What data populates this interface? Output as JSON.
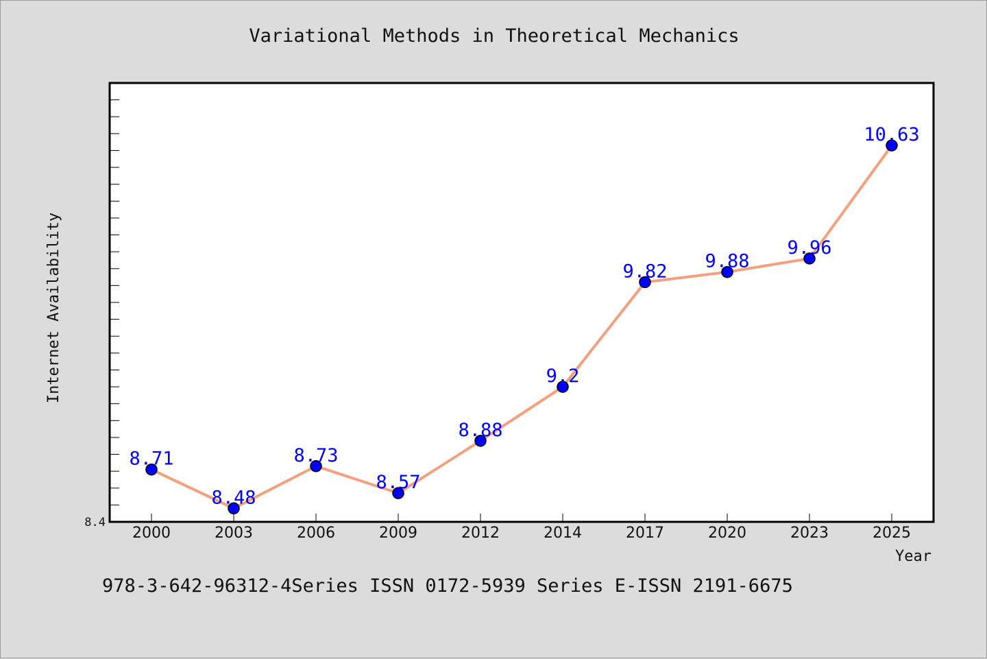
{
  "chart_data": {
    "type": "line",
    "title": "Variational Methods in Theoretical Mechanics",
    "xlabel": "Year",
    "ylabel": "Internet Availability",
    "categories": [
      "2000",
      "2003",
      "2006",
      "2009",
      "2012",
      "2014",
      "2017",
      "2020",
      "2023",
      "2025"
    ],
    "series": [
      {
        "values": [
          8.71,
          8.48,
          8.73,
          8.57,
          8.88,
          9.2,
          9.82,
          9.88,
          9.96,
          10.63
        ],
        "data_labels": [
          "8.71",
          "8.48",
          "8.73",
          "8.57",
          "8.88",
          "9.2",
          "9.82",
          "9.88",
          "9.96",
          "10.63"
        ],
        "line_color": "#f4a07f",
        "marker_color": "#0000ff"
      }
    ],
    "ylim": [
      8.4,
      11.0
    ],
    "y_tick_labels": [
      "8.4"
    ],
    "y_minor_step": 0.1,
    "grid": false,
    "legend": "none"
  },
  "footer": {
    "text": "978-3-642-96312-4Series ISSN 0172-5939 Series E-ISSN 2191-6675"
  },
  "colors": {
    "background": "#dcdcdc",
    "plot_background": "#ffffff",
    "line": "#f4a07f",
    "marker": "#0000ff",
    "data_label": "#0000ff"
  }
}
